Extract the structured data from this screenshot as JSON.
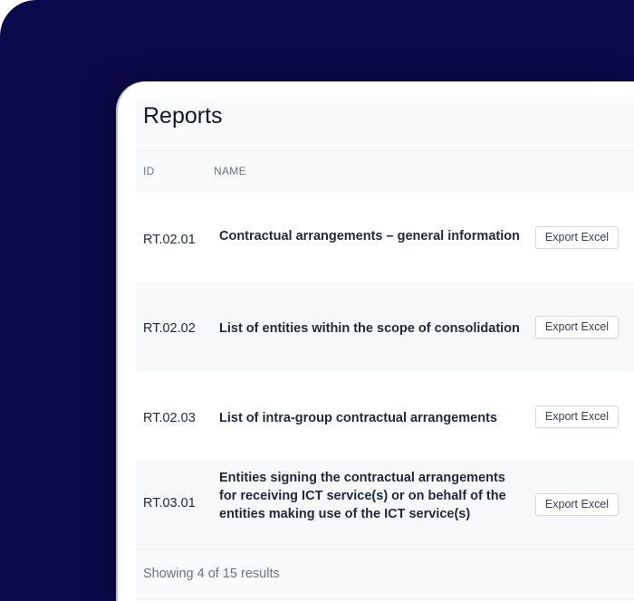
{
  "title": "Reports",
  "columns": {
    "id": "ID",
    "name": "NAME"
  },
  "rows": [
    {
      "id": "RT.02.01",
      "name": "Contractual arrangements – general information",
      "action": "Export Excel"
    },
    {
      "id": "RT.02.02",
      "name": "List of entities within the scope of consolidation",
      "action": "Export Excel"
    },
    {
      "id": "RT.02.03",
      "name": "List of intra-group contractual arrangements",
      "action": "Export Excel"
    },
    {
      "id": "RT.03.01",
      "name": "Entities signing the contractual arrangements for receiving ICT service(s) or on behalf of the entities making use of the ICT service(s)",
      "action": "Export Excel"
    }
  ],
  "footer": "Showing 4 of 15 results",
  "colors": {
    "background": "#0b0a4c",
    "card": "#ffffff",
    "stripe": "#f7f8fa"
  }
}
